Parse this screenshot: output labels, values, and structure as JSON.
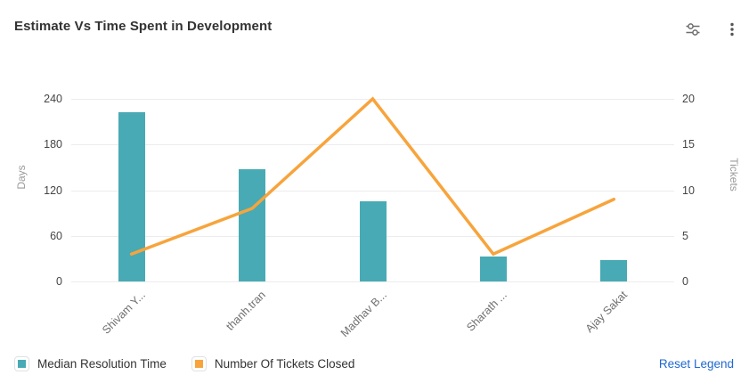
{
  "header": {
    "title": "Estimate Vs Time Spent in Development",
    "icons": [
      {
        "name": "filter-sliders-icon"
      },
      {
        "name": "kebab-menu-icon"
      }
    ]
  },
  "chart_data": {
    "type": "combo-bar-line",
    "title": "Estimate Vs Time Spent in Development",
    "categories": [
      "Shivam Y...",
      "thanh.tran",
      "Madhav B...",
      "Sharath ...",
      "Ajay Sakat"
    ],
    "series": [
      {
        "name": "Median Resolution Time",
        "type": "bar",
        "yaxis": "left",
        "color": "#48AAB4",
        "values": [
          223,
          148,
          105,
          33,
          28
        ]
      },
      {
        "name": "Number Of Tickets Closed",
        "type": "line",
        "yaxis": "right",
        "color": "#F7A43C",
        "values": [
          3,
          8,
          20,
          3,
          9
        ]
      }
    ],
    "left_axis": {
      "label": "Days",
      "ticks": [
        0,
        60,
        120,
        180,
        240
      ],
      "range": [
        0,
        240
      ]
    },
    "right_axis": {
      "label": "Tickets",
      "ticks": [
        0,
        5,
        10,
        15,
        20
      ],
      "range": [
        0,
        20
      ]
    },
    "grid": true,
    "legend_position": "bottom-left",
    "x_label_rotation": 45
  },
  "footer": {
    "reset_label": "Reset Legend"
  },
  "colors": {
    "bar_teal": "#48AAB4",
    "line_orange": "#F7A43C",
    "link_blue": "#2068D2",
    "grid_line": "#ECECEC",
    "title_text": "#333333",
    "tick_text": "#454545",
    "category_text": "#6F6F6F",
    "axis_name_text": "#9A9A9A"
  }
}
